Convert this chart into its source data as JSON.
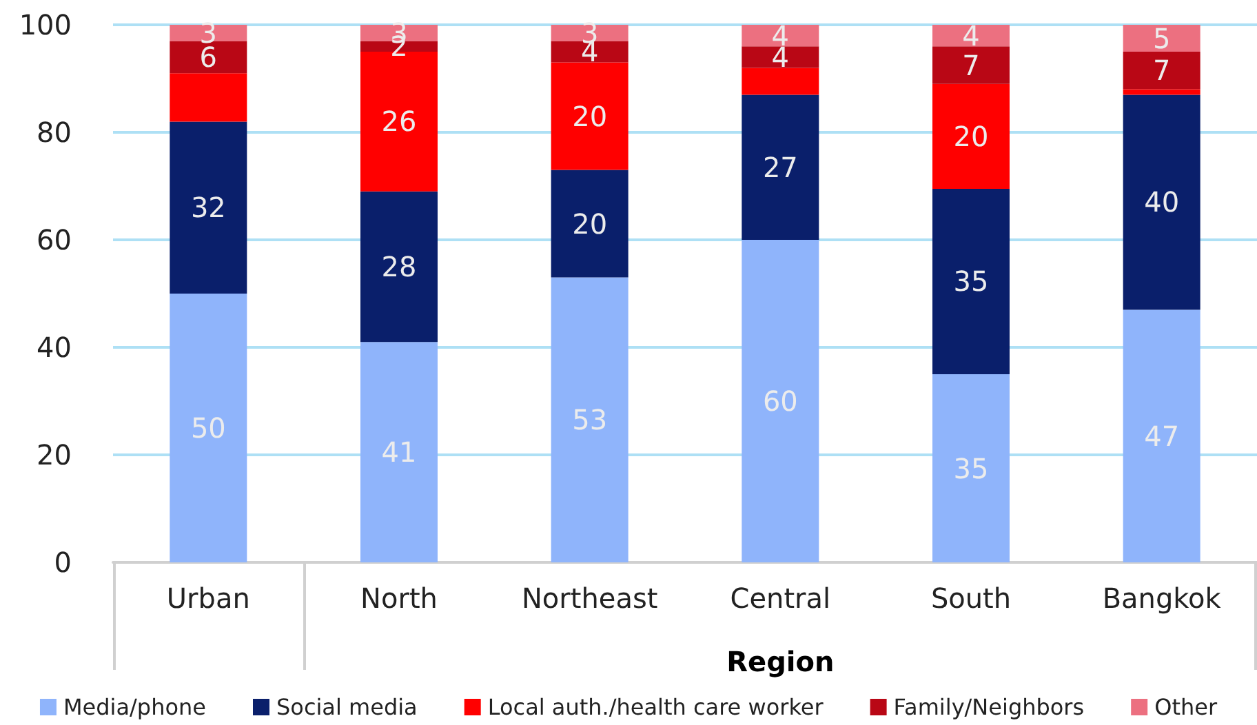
{
  "chart_data": {
    "type": "bar",
    "stacked": true,
    "xlabel": "Region",
    "categories": [
      "Urban",
      "North",
      "Northeast",
      "Central",
      "South",
      "Bangkok"
    ],
    "series": [
      {
        "name": "Media/phone",
        "color": "#8fb4fb",
        "values": [
          50,
          41,
          53,
          60,
          35,
          47
        ],
        "value_labels": [
          "50",
          "41",
          "53",
          "60",
          "35",
          "47"
        ]
      },
      {
        "name": "Social media",
        "color": "#0a1f6b",
        "values": [
          32,
          28,
          20,
          27,
          34.5,
          40
        ],
        "value_labels": [
          "32",
          "28",
          "20",
          "27",
          "35",
          "40"
        ]
      },
      {
        "name": "Local auth./health care worker",
        "color": "#ff0000",
        "values": [
          9,
          26,
          20,
          5,
          19.5,
          1
        ],
        "value_labels": [
          null,
          "26",
          "20",
          null,
          "20",
          null
        ]
      },
      {
        "name": "Family/Neighbors",
        "color": "#b90715",
        "values": [
          6,
          2,
          4,
          4,
          7,
          7
        ],
        "value_labels": [
          "6",
          "2",
          "4",
          "4",
          "7",
          "7"
        ]
      },
      {
        "name": "Other",
        "color": "#ec7080",
        "values": [
          3,
          3,
          3,
          4,
          4,
          5
        ],
        "value_labels": [
          "3",
          "3",
          "3",
          "4",
          "4",
          "5"
        ]
      }
    ],
    "ylim": [
      0,
      100
    ],
    "yticks": [
      0,
      20,
      40,
      60,
      80,
      100
    ],
    "grid": "y",
    "legend": "bottom"
  }
}
